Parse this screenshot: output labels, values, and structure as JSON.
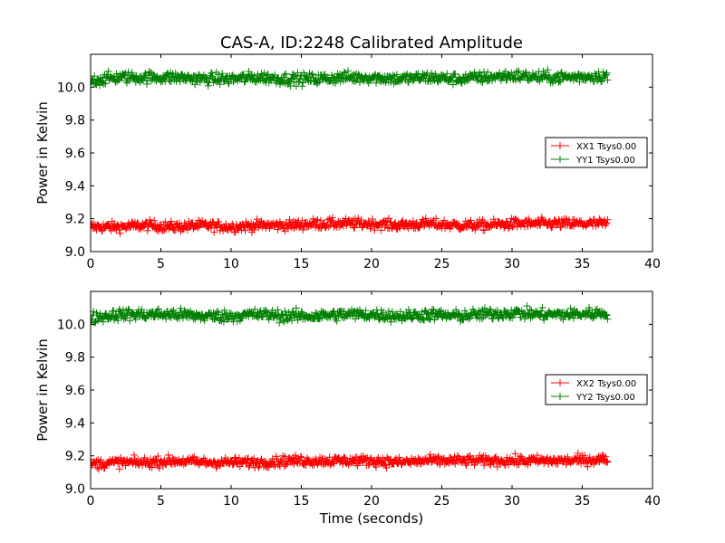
{
  "chart_data": [
    {
      "type": "scatter",
      "title": "CAS-A, ID:2248 Calibrated Amplitude",
      "xlabel": "",
      "ylabel": "Power in Kelvin",
      "xlim": [
        0,
        40
      ],
      "ylim": [
        9.0,
        10.2
      ],
      "xticks": [
        "0",
        "5",
        "10",
        "15",
        "20",
        "25",
        "30",
        "35",
        "40"
      ],
      "yticks": [
        "9.0",
        "9.2",
        "9.4",
        "9.6",
        "9.8",
        "10.0"
      ],
      "legend_position": "center-right",
      "marker": "plus",
      "series": [
        {
          "name": "XX1 Tsys0.00",
          "color": "#ff0000",
          "x": [
            0,
            2,
            4,
            6,
            8,
            10,
            12,
            14,
            16,
            18,
            20,
            22,
            24,
            26,
            28,
            30,
            32,
            34,
            36.8
          ],
          "values": [
            9.15,
            9.15,
            9.16,
            9.15,
            9.16,
            9.15,
            9.16,
            9.16,
            9.17,
            9.17,
            9.17,
            9.16,
            9.17,
            9.16,
            9.16,
            9.17,
            9.17,
            9.17,
            9.17
          ],
          "spread": 0.03
        },
        {
          "name": "YY1 Tsys0.00",
          "color": "#008000",
          "x": [
            0,
            2,
            4,
            6,
            8,
            10,
            12,
            14,
            16,
            18,
            20,
            22,
            24,
            26,
            28,
            30,
            32,
            34,
            36.8
          ],
          "values": [
            10.04,
            10.06,
            10.06,
            10.06,
            10.05,
            10.05,
            10.06,
            10.05,
            10.05,
            10.06,
            10.06,
            10.05,
            10.06,
            10.05,
            10.06,
            10.07,
            10.06,
            10.06,
            10.07
          ],
          "spread": 0.035
        }
      ]
    },
    {
      "type": "scatter",
      "title": "",
      "xlabel": "Time (seconds)",
      "ylabel": "Power in Kelvin",
      "xlim": [
        0,
        40
      ],
      "ylim": [
        9.0,
        10.2
      ],
      "xticks": [
        "0",
        "5",
        "10",
        "15",
        "20",
        "25",
        "30",
        "35",
        "40"
      ],
      "yticks": [
        "9.0",
        "9.2",
        "9.4",
        "9.6",
        "9.8",
        "10.0"
      ],
      "legend_position": "center-right",
      "marker": "plus",
      "series": [
        {
          "name": "XX2 Tsys0.00",
          "color": "#ff0000",
          "x": [
            0,
            2,
            4,
            6,
            8,
            10,
            12,
            14,
            16,
            18,
            20,
            22,
            24,
            26,
            28,
            30,
            32,
            34,
            36.8
          ],
          "values": [
            9.15,
            9.16,
            9.16,
            9.17,
            9.16,
            9.16,
            9.16,
            9.17,
            9.17,
            9.17,
            9.17,
            9.16,
            9.17,
            9.17,
            9.17,
            9.17,
            9.17,
            9.17,
            9.18
          ],
          "spread": 0.03
        },
        {
          "name": "YY2 Tsys0.00",
          "color": "#008000",
          "x": [
            0,
            2,
            4,
            6,
            8,
            10,
            12,
            14,
            16,
            18,
            20,
            22,
            24,
            26,
            28,
            30,
            32,
            34,
            36.8
          ],
          "values": [
            10.04,
            10.06,
            10.06,
            10.06,
            10.05,
            10.05,
            10.06,
            10.05,
            10.05,
            10.06,
            10.06,
            10.05,
            10.06,
            10.05,
            10.06,
            10.07,
            10.06,
            10.06,
            10.07
          ],
          "spread": 0.035
        }
      ]
    }
  ]
}
